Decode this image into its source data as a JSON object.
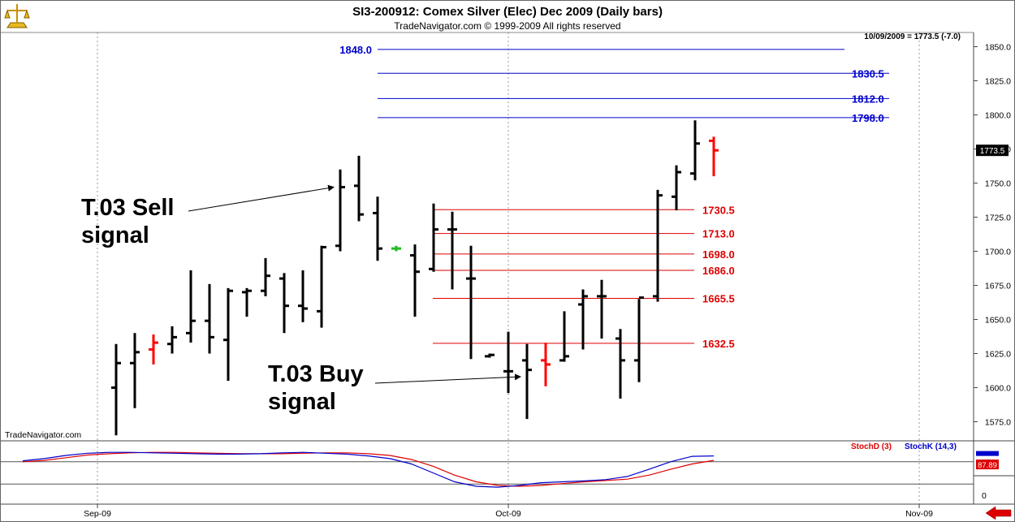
{
  "chart_data": {
    "type": "ohlc",
    "title": "SI3-200912:  Comex Silver (Elec) Dec 2009  (Daily bars)",
    "subtitle": "TradeNavigator.com © 1999-2009 All rights reserved",
    "last_value_info": "10/09/2009 = 1773.5 (-7.0)",
    "watermark": "TradeNavigator.com",
    "price_axis": {
      "ticks": [
        1575,
        1600,
        1625,
        1650,
        1675,
        1700,
        1725,
        1750,
        1775,
        1800,
        1825,
        1850
      ],
      "tick_labels": [
        "1575.0",
        "1600.0",
        "1625.0",
        "1650.0",
        "1675.0",
        "1700.0",
        "1725.0",
        "1750.0",
        "1775.0",
        "1800.0",
        "1825.0",
        "1850.0"
      ],
      "last_price_label": "1773.5"
    },
    "x_labels": [
      {
        "label": "Sep-09",
        "index": -1
      },
      {
        "label": "Oct-09",
        "index": 21
      },
      {
        "label": "Nov-09",
        "index": 43
      }
    ],
    "bars": [
      {
        "o": 1600,
        "h": 1632,
        "l": 1565,
        "c": 1618,
        "color": "#000000"
      },
      {
        "o": 1618,
        "h": 1640,
        "l": 1585,
        "c": 1626,
        "color": "#000000"
      },
      {
        "o": 1628,
        "h": 1639,
        "l": 1617,
        "c": 1633,
        "color": "#ff0000"
      },
      {
        "o": 1632,
        "h": 1645,
        "l": 1625,
        "c": 1637,
        "color": "#000000"
      },
      {
        "o": 1640,
        "h": 1686,
        "l": 1633,
        "c": 1649,
        "color": "#000000"
      },
      {
        "o": 1649,
        "h": 1676,
        "l": 1625,
        "c": 1637,
        "color": "#000000"
      },
      {
        "o": 1635,
        "h": 1673,
        "l": 1605,
        "c": 1671,
        "color": "#000000"
      },
      {
        "o": 1670,
        "h": 1673,
        "l": 1652,
        "c": 1671,
        "color": "#000000"
      },
      {
        "o": 1671,
        "h": 1695,
        "l": 1667,
        "c": 1682,
        "color": "#000000"
      },
      {
        "o": 1680,
        "h": 1684,
        "l": 1640,
        "c": 1660,
        "color": "#000000"
      },
      {
        "o": 1660,
        "h": 1686,
        "l": 1648,
        "c": 1658,
        "color": "#000000"
      },
      {
        "o": 1656,
        "h": 1704,
        "l": 1644,
        "c": 1703,
        "color": "#000000"
      },
      {
        "o": 1704,
        "h": 1760,
        "l": 1700,
        "c": 1747,
        "color": "#000000"
      },
      {
        "o": 1748,
        "h": 1770,
        "l": 1722,
        "c": 1727,
        "color": "#000000"
      },
      {
        "o": 1728,
        "h": 1740,
        "l": 1693,
        "c": 1702,
        "color": "#000000"
      },
      {
        "o": 1702,
        "h": 1704,
        "l": 1700,
        "c": 1702,
        "color": "#22bb22"
      },
      {
        "o": 1697,
        "h": 1705,
        "l": 1652,
        "c": 1685,
        "color": "#000000"
      },
      {
        "o": 1687,
        "h": 1735,
        "l": 1685,
        "c": 1716,
        "color": "#000000"
      },
      {
        "o": 1716,
        "h": 1729,
        "l": 1672,
        "c": 1716,
        "color": "#000000"
      },
      {
        "o": 1680,
        "h": 1704,
        "l": 1621,
        "c": 1680,
        "color": "#000000"
      },
      {
        "o": 1623,
        "h": 1625,
        "l": 1622,
        "c": 1624,
        "color": "#000000"
      },
      {
        "o": 1612,
        "h": 1641,
        "l": 1596,
        "c": 1612,
        "color": "#000000"
      },
      {
        "o": 1620,
        "h": 1632,
        "l": 1577,
        "c": 1613,
        "color": "#000000"
      },
      {
        "o": 1620,
        "h": 1633,
        "l": 1601,
        "c": 1617,
        "color": "#ff0000"
      },
      {
        "o": 1620,
        "h": 1656,
        "l": 1619,
        "c": 1623,
        "color": "#000000"
      },
      {
        "o": 1661,
        "h": 1672,
        "l": 1628,
        "c": 1667,
        "color": "#000000"
      },
      {
        "o": 1667,
        "h": 1679,
        "l": 1636,
        "c": 1667,
        "color": "#000000"
      },
      {
        "o": 1636,
        "h": 1643,
        "l": 1592,
        "c": 1620,
        "color": "#000000"
      },
      {
        "o": 1620,
        "h": 1665,
        "l": 1604,
        "c": 1666,
        "color": "#000000"
      },
      {
        "o": 1667,
        "h": 1745,
        "l": 1663,
        "c": 1741,
        "color": "#000000"
      },
      {
        "o": 1740,
        "h": 1763,
        "l": 1730,
        "c": 1758,
        "color": "#000000"
      },
      {
        "o": 1757,
        "h": 1796,
        "l": 1752,
        "c": 1779,
        "color": "#000000"
      },
      {
        "o": 1781,
        "h": 1784,
        "l": 1755,
        "c": 1774,
        "color": "#ff0000"
      }
    ],
    "sell_levels": [
      {
        "label": "1848.0",
        "value": 1848.0
      },
      {
        "label": "1830.5",
        "value": 1830.5
      },
      {
        "label": "1812.0",
        "value": 1812.0
      },
      {
        "label": "1798.0",
        "value": 1798.0
      }
    ],
    "buy_levels": [
      {
        "label": "1730.5",
        "value": 1730.5
      },
      {
        "label": "1713.0",
        "value": 1713.0
      },
      {
        "label": "1698.0",
        "value": 1698.0
      },
      {
        "label": "1686.0",
        "value": 1686.0
      },
      {
        "label": "1665.5",
        "value": 1665.5
      },
      {
        "label": "1632.5",
        "value": 1632.5
      }
    ],
    "annotations": [
      {
        "lines": [
          "T.03 Sell",
          "signal"
        ],
        "target_bar": 12,
        "target_value": 1747
      },
      {
        "lines": [
          "T.03 Buy",
          "signal"
        ],
        "target_bar": 22,
        "target_value": 1608
      }
    ],
    "stochastic": {
      "d_label": "StochD (3)",
      "k_label": "StochK (14,3)",
      "axis_tick_labels": [
        {
          "label": "0",
          "value": 0
        },
        {
          "label": "75",
          "value": 75
        }
      ],
      "last_label": "87.89",
      "d_values": [
        75,
        78,
        84,
        90,
        93,
        95,
        96,
        96,
        95,
        94,
        93,
        93,
        93,
        94,
        95,
        95,
        93,
        89,
        80,
        65,
        45,
        30,
        22,
        20,
        22,
        26,
        30,
        33,
        36,
        45,
        58,
        70,
        78
      ],
      "k_values": [
        77,
        82,
        89,
        94,
        96,
        96,
        95,
        94,
        93,
        92,
        92,
        93,
        95,
        96,
        94,
        92,
        88,
        82,
        70,
        50,
        30,
        20,
        18,
        22,
        28,
        30,
        32,
        35,
        42,
        58,
        75,
        87,
        88
      ]
    },
    "colors": {
      "sell_levels": "#0000cc",
      "buy_levels": "#dd0000",
      "stoch_d": "#e00000",
      "stoch_k": "#0000cc",
      "up_bar": "#000000",
      "down_bar": "#ff0000"
    }
  }
}
